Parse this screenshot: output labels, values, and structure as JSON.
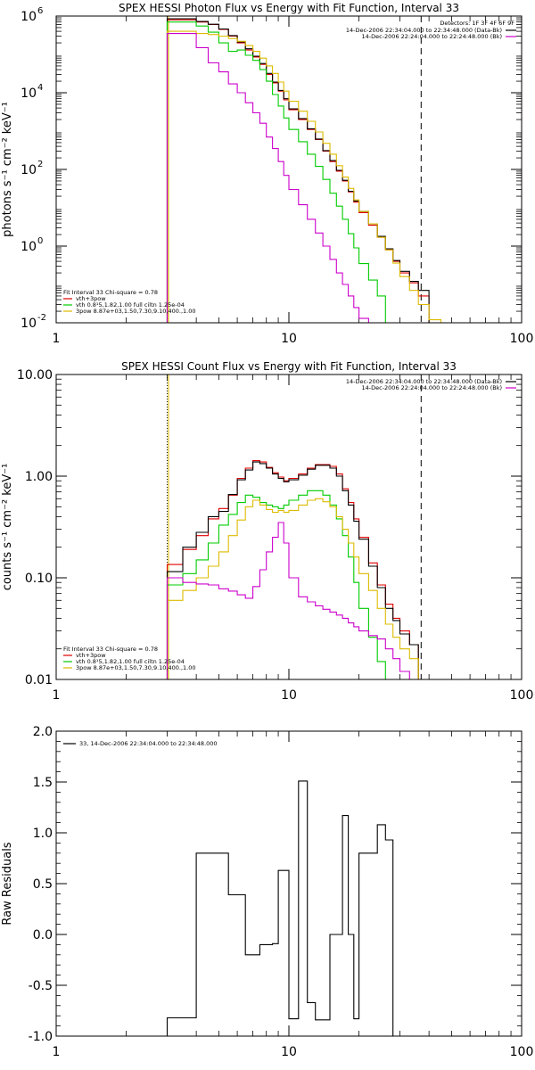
{
  "chart_data": [
    {
      "type": "line",
      "title": "SPEX HESSI Photon Flux vs Energy with Fit Function, Interval 33",
      "ylabel": "photons s⁻¹ cm⁻² keV⁻¹",
      "xlabel": "",
      "xscale": "log",
      "yscale": "log",
      "xlim": [
        1,
        100
      ],
      "ylim": [
        0.01,
        1000000
      ],
      "xticks": [
        {
          "v": 1,
          "label": "1"
        },
        {
          "v": 10,
          "label": "10"
        },
        {
          "v": 100,
          "label": "100"
        }
      ],
      "yticks": [
        {
          "v": 0.01,
          "label": "10",
          "sup": "-2"
        },
        {
          "v": 1,
          "label": "10",
          "sup": "0"
        },
        {
          "v": 100,
          "label": "10",
          "sup": "2"
        },
        {
          "v": 10000,
          "label": "10",
          "sup": "4"
        },
        {
          "v": 1000000,
          "label": "10",
          "sup": "6"
        }
      ],
      "vlines": [
        {
          "x": 3.0,
          "style": "dotted",
          "color": "#000000"
        },
        {
          "x": 3.04,
          "style": "solid",
          "color": "#ddbb00"
        },
        {
          "x": 37,
          "style": "dashed",
          "color": "#000000"
        }
      ],
      "edges": [
        3,
        3.5,
        4,
        4.5,
        5,
        5.5,
        6,
        6.5,
        7,
        7.5,
        8,
        8.5,
        9,
        9.5,
        10,
        11,
        12,
        13,
        14,
        15,
        16,
        17,
        18,
        19,
        20,
        22,
        24,
        26,
        28,
        30,
        33,
        36,
        40,
        45
      ],
      "series": [
        {
          "name": "vth+3pow",
          "color": "#e00000",
          "values": [
            800000,
            800000,
            700000,
            600000,
            450000,
            300000,
            200000,
            130000,
            85000,
            55000,
            30000,
            18000,
            11000,
            6500,
            3600,
            2000,
            1100,
            600,
            300,
            160,
            90,
            50,
            26,
            14,
            7.5,
            3.5,
            1.7,
            0.8,
            0.4,
            0.2,
            0.11,
            0.05,
            null
          ]
        },
        {
          "name": "",
          "color": "#000000",
          "values": [
            850000,
            850000,
            720000,
            610000,
            460000,
            310000,
            210000,
            140000,
            90000,
            58000,
            32000,
            19000,
            11500,
            7000,
            3800,
            2100,
            1150,
            620,
            310,
            170,
            95,
            52,
            27,
            15,
            8,
            3.8,
            1.8,
            0.85,
            0.42,
            0.22,
            0.12,
            0.07,
            null
          ]
        },
        {
          "name": "vth 0.8¹5,1.82,1.00  full ciltn 1.25e-04",
          "color": "#00cc00",
          "values": [
            700000,
            700000,
            550000,
            380000,
            200000,
            120000,
            130000,
            95000,
            70000,
            40000,
            20000,
            9000,
            4500,
            2200,
            1100,
            530,
            250,
            120,
            55,
            24,
            11,
            5,
            2.1,
            0.9,
            0.35,
            0.13,
            0.05,
            null,
            null,
            null,
            null,
            null,
            null
          ]
        },
        {
          "name": "3pow 8.87e+03,1.50,7.30,9.10,400.,1.00",
          "color": "#ddbb00",
          "values": [
            400000,
            400000,
            350000,
            330000,
            300000,
            260000,
            220000,
            170000,
            120000,
            80000,
            50000,
            32000,
            19000,
            11000,
            6000,
            3300,
            1800,
            950,
            480,
            250,
            125,
            63,
            32,
            16,
            8,
            3.8,
            1.7,
            0.8,
            0.36,
            0.16,
            0.07,
            0.03,
            0.012
          ]
        },
        {
          "name": "",
          "color": "#cc00cc",
          "values": [
            350000,
            350000,
            150000,
            60000,
            35000,
            17000,
            10000,
            5500,
            3000,
            1600,
            700,
            350,
            160,
            70,
            30,
            12,
            5,
            2.2,
            1,
            0.45,
            0.2,
            0.1,
            0.05,
            0.025,
            0.013,
            null,
            null,
            null,
            null,
            null,
            null,
            null,
            null
          ]
        }
      ],
      "legend_header": [
        "Detectors: 1F 3F 4F 6F 9F"
      ],
      "legend_right": [
        {
          "text": "14-Dec-2006 22:34:04.000 to 22:34:48.000 (Data-Bk)",
          "color": "#000000"
        },
        {
          "text": "14-Dec-2006 22:24:04.000 to 22:24:48.000 (Bk)",
          "color": "#cc00cc"
        }
      ],
      "fit_header": "Fit Interval  33    Chi-square = 0.78",
      "legend_left": [
        {
          "text": "vth+3pow",
          "color": "#e00000"
        },
        {
          "text": "vth 0.8¹5,1.82,1.00  full ciltn 1.25e-04",
          "color": "#00cc00"
        },
        {
          "text": "3pow 8.87e+03,1.50,7.30,9.10,400.,1.00",
          "color": "#ddbb00"
        }
      ]
    },
    {
      "type": "line",
      "title": "SPEX HESSI Count Flux vs Energy with Fit Function, Interval 33",
      "ylabel": "counts s⁻¹ cm⁻² keV⁻¹",
      "xlabel": "",
      "xscale": "log",
      "yscale": "log",
      "xlim": [
        1,
        100
      ],
      "ylim": [
        0.01,
        10
      ],
      "xticks": [
        {
          "v": 1,
          "label": "1"
        },
        {
          "v": 10,
          "label": "10"
        },
        {
          "v": 100,
          "label": "100"
        }
      ],
      "yticks": [
        {
          "v": 0.01,
          "label": "0.01"
        },
        {
          "v": 0.1,
          "label": "0.10"
        },
        {
          "v": 1,
          "label": "1.00"
        },
        {
          "v": 10,
          "label": "10.00"
        }
      ],
      "vlines": [
        {
          "x": 3.0,
          "style": "dotted",
          "color": "#000000"
        },
        {
          "x": 3.04,
          "style": "solid",
          "color": "#ddbb00"
        },
        {
          "x": 37,
          "style": "dashed",
          "color": "#000000"
        }
      ],
      "edges": [
        3,
        3.5,
        4,
        4.5,
        5,
        5.5,
        6,
        6.5,
        7,
        7.5,
        8,
        8.5,
        9,
        9.5,
        10,
        11,
        12,
        13,
        14,
        15,
        16,
        17,
        18,
        19,
        20,
        22,
        24,
        26,
        28,
        30,
        33,
        36,
        40
      ],
      "series": [
        {
          "name": "vth+3pow",
          "color": "#e00000",
          "values": [
            0.135,
            0.19,
            0.26,
            0.38,
            0.48,
            0.65,
            0.95,
            1.2,
            1.42,
            1.38,
            1.22,
            1.08,
            0.98,
            0.9,
            0.95,
            1.05,
            1.2,
            1.3,
            1.3,
            1.25,
            1.05,
            0.75,
            0.55,
            0.38,
            0.25,
            0.14,
            0.085,
            0.055,
            0.04,
            0.03,
            0.022,
            0.01
          ]
        },
        {
          "name": "",
          "color": "#000000",
          "values": [
            0.115,
            0.2,
            0.28,
            0.4,
            0.45,
            0.66,
            0.92,
            1.15,
            1.38,
            1.33,
            1.2,
            1.05,
            0.95,
            0.88,
            0.92,
            1.02,
            1.17,
            1.28,
            1.28,
            1.2,
            1.0,
            0.72,
            0.52,
            0.36,
            0.24,
            0.13,
            0.08,
            0.05,
            0.038,
            0.028,
            0.022,
            0.01
          ]
        },
        {
          "name": "vth 0.8¹5,1.82,1.00  full ciltn 1.25e-04",
          "color": "#00cc00",
          "values": [
            0.085,
            0.11,
            0.15,
            0.22,
            0.33,
            0.42,
            0.55,
            0.65,
            0.62,
            0.55,
            0.52,
            0.5,
            0.48,
            0.52,
            0.58,
            0.65,
            0.72,
            0.72,
            0.65,
            0.52,
            0.38,
            0.26,
            0.16,
            0.09,
            0.05,
            0.026,
            0.015,
            0.01,
            0.01,
            0.01,
            0.01,
            0.01
          ]
        },
        {
          "name": "3pow 8.87e+03,1.50,7.30,9.10,400.,1.00",
          "color": "#ddbb00",
          "values": [
            0.06,
            0.075,
            0.1,
            0.13,
            0.18,
            0.26,
            0.37,
            0.5,
            0.58,
            0.52,
            0.47,
            0.44,
            0.46,
            0.44,
            0.46,
            0.52,
            0.58,
            0.6,
            0.56,
            0.5,
            0.4,
            0.3,
            0.22,
            0.16,
            0.11,
            0.075,
            0.05,
            0.035,
            0.026,
            0.02,
            0.016,
            0.01
          ]
        },
        {
          "name": "",
          "color": "#cc00cc",
          "values": [
            0.1,
            0.09,
            0.087,
            0.085,
            0.078,
            0.074,
            0.068,
            0.063,
            0.082,
            0.12,
            0.18,
            0.25,
            0.35,
            0.22,
            0.1,
            0.065,
            0.058,
            0.053,
            0.049,
            0.046,
            0.043,
            0.04,
            0.036,
            0.033,
            0.03,
            0.027,
            0.025,
            0.02,
            0.016,
            0.012,
            0.01,
            0.01
          ]
        }
      ],
      "legend_right": [
        {
          "text": "14-Dec-2006 22:34:04.000 to 22:34:48.000 (Data-Bk)",
          "color": "#000000"
        },
        {
          "text": "14-Dec-2006 22:24:04.000 to 22:24:48.000 (Bk)",
          "color": "#cc00cc"
        }
      ],
      "fit_header": "Fit Interval  33    Chi-square = 0.78",
      "legend_left": [
        {
          "text": "vth+3pow",
          "color": "#e00000"
        },
        {
          "text": "vth 0.8¹5,1.82,1.00  full ciltn 1.25e-04",
          "color": "#00cc00"
        },
        {
          "text": "3pow 8.87e+03,1.50,7.30,9.10,400.,1.00",
          "color": "#ddbb00"
        }
      ]
    },
    {
      "type": "line",
      "title": "",
      "ylabel": "Raw Residuals",
      "xlabel": "",
      "xscale": "log",
      "yscale": "linear",
      "xlim": [
        1,
        100
      ],
      "ylim": [
        -1.0,
        2.0
      ],
      "xticks": [
        {
          "v": 1,
          "label": "1"
        },
        {
          "v": 10,
          "label": "10"
        },
        {
          "v": 100,
          "label": "100"
        }
      ],
      "yticks": [
        {
          "v": -1.0,
          "label": "-1.0"
        },
        {
          "v": -0.5,
          "label": "-0.5"
        },
        {
          "v": 0.0,
          "label": "0.0"
        },
        {
          "v": 0.5,
          "label": "0.5"
        },
        {
          "v": 1.0,
          "label": "1.0"
        },
        {
          "v": 1.5,
          "label": "1.5"
        },
        {
          "v": 2.0,
          "label": "2.0"
        }
      ],
      "vlines": [],
      "edges": [
        3,
        3.5,
        4,
        4.5,
        5,
        5.5,
        6,
        6.5,
        7,
        7.5,
        8,
        8.5,
        9,
        9.5,
        10,
        11,
        12,
        13,
        14,
        15,
        16,
        17,
        18,
        19,
        20,
        22,
        24,
        26,
        28,
        30,
        33,
        36,
        40
      ],
      "series": [
        {
          "name": "33, 14-Dec-2006 22:34:04.000 to 22:34:48.000",
          "color": "#000000",
          "values": [
            -0.82,
            -0.82,
            0.8,
            0.8,
            0.8,
            0.39,
            0.39,
            -0.2,
            -0.2,
            -0.1,
            -0.1,
            -0.09,
            0.63,
            0.63,
            -0.83,
            1.51,
            -0.67,
            -0.84,
            -0.84,
            0.0,
            0.0,
            1.17,
            0.0,
            -0.83,
            0.8,
            0.8,
            1.08,
            0.93,
            -1.0,
            -1.0,
            -1.0,
            -1.0
          ]
        }
      ],
      "legend_right": [],
      "legend_left": [
        {
          "text": "33, 14-Dec-2006 22:34:04.000 to 22:34:48.000",
          "color": "#000000"
        }
      ]
    }
  ]
}
